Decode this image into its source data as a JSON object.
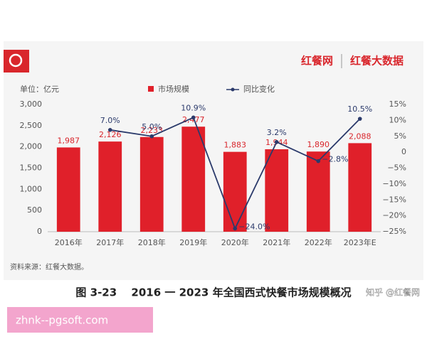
{
  "chart_data": {
    "type": "bar",
    "unit_label": "单位：亿元",
    "categories": [
      "2016年",
      "2017年",
      "2018年",
      "2019年",
      "2020年",
      "2021年",
      "2022年",
      "2023年E"
    ],
    "series": [
      {
        "name": "市场规模",
        "type": "bar",
        "color": "#e0202a",
        "axis": "y",
        "values": [
          1987,
          2126,
          2233,
          2477,
          1883,
          1944,
          1890,
          2088
        ],
        "value_labels": [
          "1,987",
          "2,126",
          "2,233",
          "2,477",
          "1,883",
          "1,944",
          "1,890",
          "2,088"
        ]
      },
      {
        "name": "同比变化",
        "type": "line",
        "color": "#2b3a6b",
        "axis": "y2",
        "values": [
          null,
          7.0,
          5.0,
          10.9,
          -24.0,
          3.2,
          -2.8,
          10.5
        ],
        "value_labels": [
          null,
          "7.0%",
          "5.0%",
          "10.9%",
          "−24.0%",
          "3.2%",
          "−2.8%",
          "10.5%"
        ]
      }
    ],
    "ylim": [
      0,
      3000
    ],
    "yticks": [
      0,
      500,
      {
        "value": 1000,
        "label": "1,000"
      },
      {
        "value": 1500,
        "label": "1,500"
      },
      {
        "value": 2000,
        "label": "2,000"
      },
      {
        "value": 2500,
        "label": "2,500"
      },
      {
        "value": 3000,
        "label": "3,000"
      }
    ],
    "y2lim": [
      -25,
      15
    ],
    "y2ticks": [
      {
        "value": -25,
        "label": "−25%"
      },
      {
        "value": -20,
        "label": "−20%"
      },
      {
        "value": -15,
        "label": "−15%"
      },
      {
        "value": -10,
        "label": "−10%"
      },
      {
        "value": -5,
        "label": "−5%"
      },
      {
        "value": 0,
        "label": "0"
      },
      {
        "value": 5,
        "label": "5%"
      },
      {
        "value": 10,
        "label": "10%"
      },
      {
        "value": 15,
        "label": "15%"
      }
    ],
    "grid": false,
    "source": "资料来源：红餐大数据。"
  },
  "page": {
    "logo": "红餐网",
    "logo2": "红餐大数据",
    "caption": "图 3-23　 2016 一 2023 年全国西式快餐市场规模概况",
    "watermark": "知乎 @红餐网",
    "banner": "zhnk--pgsoft.com"
  }
}
